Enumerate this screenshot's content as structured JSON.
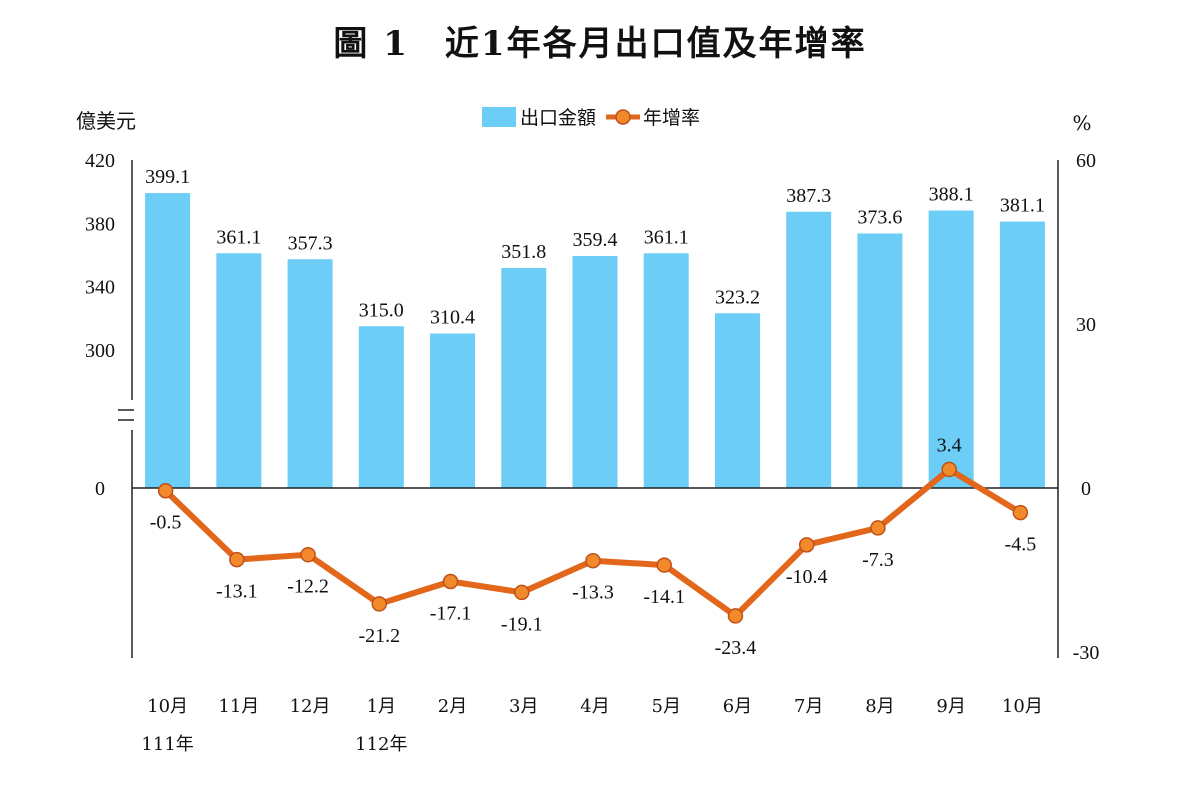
{
  "title": "圖 1　近1年各月出口值及年增率",
  "colors": {
    "bar": "#6ccdf6",
    "line": "#e2671b",
    "marker_fill": "#f28a2c"
  },
  "chart_data": {
    "type": "bar+line",
    "title": "圖 1　近1年各月出口值及年增率",
    "categories": [
      "10月",
      "11月",
      "12月",
      "1月",
      "2月",
      "3月",
      "4月",
      "5月",
      "6月",
      "7月",
      "8月",
      "9月",
      "10月"
    ],
    "category_sublabels": [
      "111年",
      "",
      "",
      "112年",
      "",
      "",
      "",
      "",
      "",
      "",
      "",
      "",
      ""
    ],
    "series": [
      {
        "name": "出口金額",
        "type": "bar",
        "axis": "left",
        "values": [
          399.1,
          361.1,
          357.3,
          315.0,
          310.4,
          351.8,
          359.4,
          361.1,
          323.2,
          387.3,
          373.6,
          388.1,
          381.1
        ],
        "labels": [
          "399.1",
          "361.1",
          "357.3",
          "315.0",
          "310.4",
          "351.8",
          "359.4",
          "361.1",
          "323.2",
          "387.3",
          "373.6",
          "388.1",
          "381.1"
        ]
      },
      {
        "name": "年增率",
        "type": "line",
        "axis": "right",
        "values": [
          -0.5,
          -13.1,
          -12.2,
          -21.2,
          -17.1,
          -19.1,
          -13.3,
          -14.1,
          -23.4,
          -10.4,
          -7.3,
          3.4,
          -4.5
        ],
        "labels": [
          "-0.5",
          "-13.1",
          "-12.2",
          "-21.2",
          "-17.1",
          "-19.1",
          "-13.3",
          "-14.1",
          "-23.4",
          "-10.4",
          "-7.3",
          "3.4",
          "-4.5"
        ]
      }
    ],
    "left_axis": {
      "unit": "億美元",
      "ticks": [
        "420",
        "380",
        "340",
        "300",
        "0"
      ],
      "broken": true,
      "ylim": [
        0,
        420
      ]
    },
    "right_axis": {
      "unit": "%",
      "ticks": [
        "60",
        "30",
        "0",
        "-30"
      ],
      "ylim": [
        -30,
        60
      ]
    },
    "legend_position": "top-center",
    "grid": false
  }
}
